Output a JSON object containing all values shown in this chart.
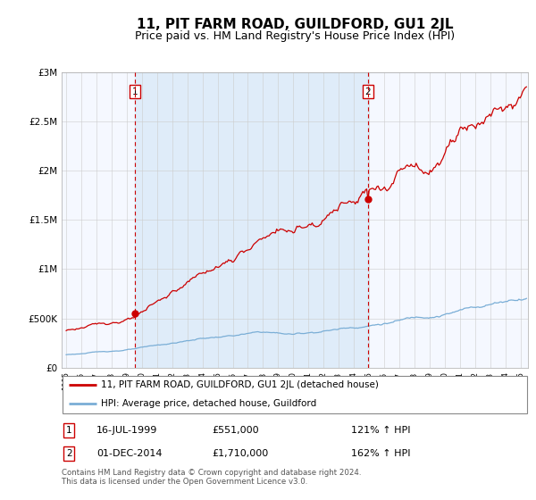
{
  "title": "11, PIT FARM ROAD, GUILDFORD, GU1 2JL",
  "subtitle": "Price paid vs. HM Land Registry's House Price Index (HPI)",
  "title_fontsize": 11,
  "subtitle_fontsize": 9,
  "legend_line1": "11, PIT FARM ROAD, GUILDFORD, GU1 2JL (detached house)",
  "legend_line2": "HPI: Average price, detached house, Guildford",
  "sale1_date": 1999.54,
  "sale1_price": 551000,
  "sale1_label": "16-JUL-1999",
  "sale1_amount": "£551,000",
  "sale1_hpi": "121% ↑ HPI",
  "sale2_date": 2014.92,
  "sale2_price": 1710000,
  "sale2_label": "01-DEC-2014",
  "sale2_amount": "£1,710,000",
  "sale2_hpi": "162% ↑ HPI",
  "footer1": "Contains HM Land Registry data © Crown copyright and database right 2024.",
  "footer2": "This data is licensed under the Open Government Licence v3.0.",
  "red_color": "#cc0000",
  "blue_line_color": "#7aaed6",
  "shade_color": "#d6e8f7",
  "background_color": "#ffffff",
  "plot_bg": "#f5f8ff",
  "ylim": [
    0,
    3000000
  ],
  "xlim_start": 1994.7,
  "xlim_end": 2025.5
}
